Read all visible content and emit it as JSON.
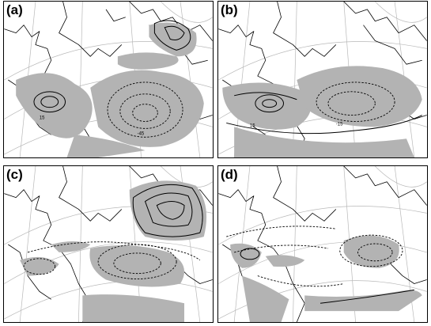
{
  "panels": [
    {
      "label": "(a)"
    },
    {
      "label": "(b)"
    },
    {
      "label": "(c)"
    },
    {
      "label": "(d)"
    }
  ],
  "contour_labels": {
    "neg15": "-15",
    "neg45": "-45",
    "pos15": "15"
  },
  "colors": {
    "shading": "#b3b3b3",
    "grid": "#b8b8b8",
    "contour": "#000000"
  }
}
